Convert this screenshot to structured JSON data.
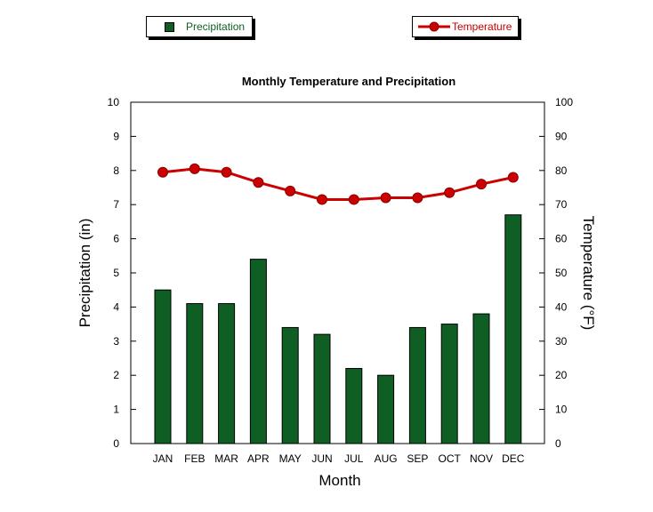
{
  "chart_data": {
    "type": "bar+line",
    "title": "Monthly Temperature and Precipitation",
    "xlabel": "Month",
    "ylabel_left": "Precipitation (in)",
    "ylabel_right": "Temperature (°F)",
    "categories": [
      "JAN",
      "FEB",
      "MAR",
      "APR",
      "MAY",
      "JUN",
      "JUL",
      "AUG",
      "SEP",
      "OCT",
      "NOV",
      "DEC"
    ],
    "ylim_left": [
      0,
      10
    ],
    "yticks_left": [
      "0",
      "1",
      "2",
      "3",
      "4",
      "5",
      "6",
      "7",
      "8",
      "9",
      "10"
    ],
    "ylim_right": [
      0,
      100
    ],
    "yticks_right": [
      "0",
      "10",
      "20",
      "30",
      "40",
      "50",
      "60",
      "70",
      "80",
      "90",
      "100"
    ],
    "series": [
      {
        "name": "Precipitation",
        "type": "bar",
        "axis": "left",
        "color": "#0f5e24",
        "values": [
          4.5,
          4.1,
          4.1,
          5.4,
          3.4,
          3.2,
          2.2,
          2.0,
          3.4,
          3.5,
          3.8,
          6.7
        ]
      },
      {
        "name": "Temperature",
        "type": "line",
        "axis": "right",
        "color": "#cc0000",
        "values": [
          79.5,
          80.5,
          79.5,
          76.5,
          74.0,
          71.5,
          71.5,
          72.0,
          72.0,
          73.5,
          76.0,
          78.0
        ]
      }
    ]
  },
  "legend": {
    "precipitation_label": "Precipitation",
    "temperature_label": "Temperature",
    "precipitation_color": "#0f5e24",
    "temperature_color": "#cc0000"
  }
}
